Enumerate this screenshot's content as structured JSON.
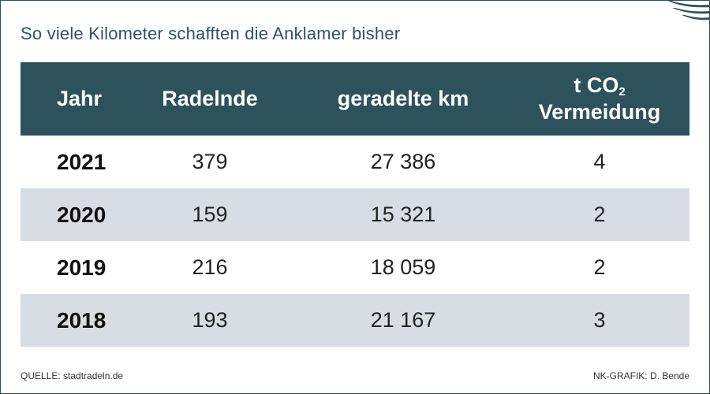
{
  "title": "So viele Kilometer schafften die Anklamer bisher",
  "header": {
    "jahr": "Jahr",
    "radelnde": "Radelnde",
    "km": "geradelte km",
    "co2_prefix": "t CO",
    "co2_sub": "2",
    "co2_line2": "Vermeidung"
  },
  "chart_data": {
    "type": "table",
    "columns": [
      "Jahr",
      "Radelnde",
      "geradelte km",
      "t CO2 Vermeidung"
    ],
    "rows": [
      {
        "jahr": "2021",
        "radelnde": "379",
        "km": "27 386",
        "co2": "4"
      },
      {
        "jahr": "2020",
        "radelnde": "159",
        "km": "15 321",
        "co2": "2"
      },
      {
        "jahr": "2019",
        "radelnde": "216",
        "km": "18 059",
        "co2": "2"
      },
      {
        "jahr": "2018",
        "radelnde": "193",
        "km": "21 167",
        "co2": "3"
      }
    ]
  },
  "footer": {
    "source": "QUELLE: stadtradeln.de",
    "credit": "NK-GRAFIK: D. Bende"
  },
  "colors": {
    "header_bg": "#2d525c",
    "alt_row_bg": "#d8dde3",
    "title": "#2f5560"
  }
}
